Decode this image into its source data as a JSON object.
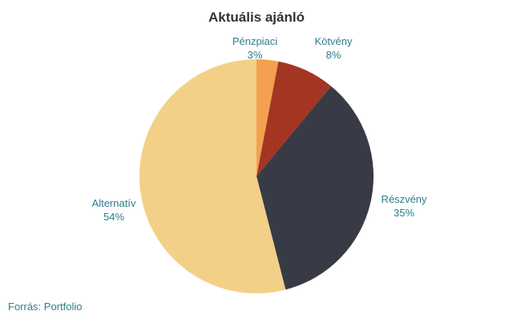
{
  "chart_data": {
    "type": "pie",
    "title": "Aktuális ajánló",
    "slices": [
      {
        "label": "Pénzpiaci",
        "value": 3,
        "value_label": "3%",
        "color": "#f4a050"
      },
      {
        "label": "Kötvény",
        "value": 8,
        "value_label": "8%",
        "color": "#a33522"
      },
      {
        "label": "Részvény",
        "value": 35,
        "value_label": "35%",
        "color": "#383b45"
      },
      {
        "label": "Alternatív",
        "value": 54,
        "value_label": "54%",
        "color": "#f2d088"
      }
    ],
    "start_angle": "12 o'clock",
    "direction": "clockwise"
  },
  "source": "Forrás: Portfolio"
}
